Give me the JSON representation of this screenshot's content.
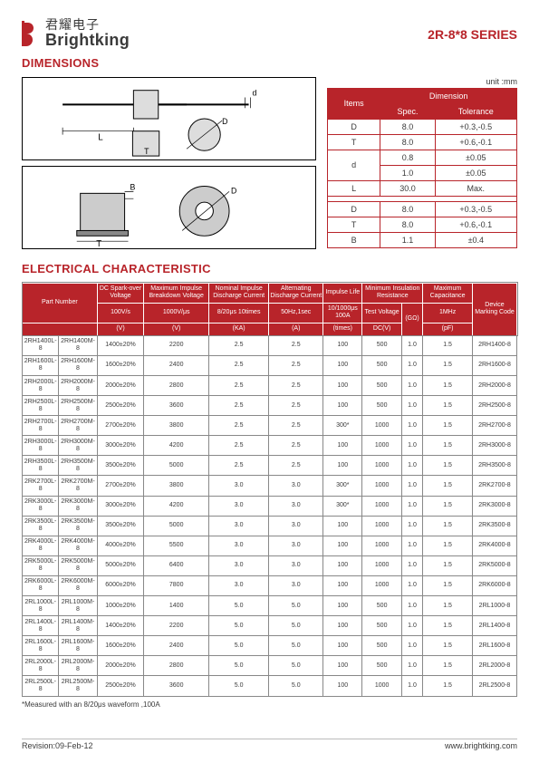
{
  "header": {
    "logo_cn": "君耀电子",
    "logo_en": "Brightking",
    "series": "2R-8*8 SERIES"
  },
  "sections": {
    "dimensions": "DIMENSIONS",
    "electrical": "ELECTRICAL CHARACTERISTIC"
  },
  "dim_unit": "unit :mm",
  "dim_headers": {
    "items": "Items",
    "dimension": "Dimension",
    "spec": "Spec.",
    "tol": "Tolerance"
  },
  "dim_rows_a": [
    {
      "item": "D",
      "spec": "8.0",
      "tol": "+0.3,-0.5"
    },
    {
      "item": "T",
      "spec": "8.0",
      "tol": "+0.6,-0.1"
    },
    {
      "item": "d",
      "spec": "0.8",
      "tol": "±0.05",
      "rowspan": 2
    },
    {
      "item": "",
      "spec": "1.0",
      "tol": "±0.05"
    },
    {
      "item": "L",
      "spec": "30.0",
      "tol": "Max."
    }
  ],
  "dim_rows_b": [
    {
      "item": "D",
      "spec": "8.0",
      "tol": "+0.3,-0.5"
    },
    {
      "item": "T",
      "spec": "8.0",
      "tol": "+0.6,-0.1"
    },
    {
      "item": "B",
      "spec": "1.1",
      "tol": "±0.4"
    }
  ],
  "elec_headers": {
    "r1": [
      "Part Number",
      "DC Spark-over Voltage",
      "Maximum Impulse Breakdown Voltage",
      "Nominal Impulse Discharge Current",
      "Alternating Discharge Current",
      "Impulse Life",
      "Minimum Insulation Resistance",
      "Maximum Capacitance",
      "Device Marking Code"
    ],
    "r2": [
      "100V/s",
      "1000V/μs",
      "8/20μs 10times",
      "50Hz,1sec",
      "10/1000μs 100A",
      "Test Voltage",
      "(GΩ)",
      "1MHz"
    ],
    "r3": [
      "(V)",
      "(V)",
      "(KA)",
      "(A)",
      "(times)",
      "DC(V)",
      "",
      "(pF)"
    ]
  },
  "elec_groups": [
    [
      [
        "2RH1400L-8",
        "2RH1400M-8",
        "1400±20%",
        "2200",
        "2.5",
        "2.5",
        "100",
        "500",
        "1.0",
        "1.5",
        "2RH1400-8"
      ],
      [
        "2RH1600L-8",
        "2RH1600M-8",
        "1600±20%",
        "2400",
        "2.5",
        "2.5",
        "100",
        "500",
        "1.0",
        "1.5",
        "2RH1600-8"
      ],
      [
        "2RH2000L-8",
        "2RH2000M-8",
        "2000±20%",
        "2800",
        "2.5",
        "2.5",
        "100",
        "500",
        "1.0",
        "1.5",
        "2RH2000-8"
      ],
      [
        "2RH2500L-8",
        "2RH2500M-8",
        "2500±20%",
        "3600",
        "2.5",
        "2.5",
        "100",
        "500",
        "1.0",
        "1.5",
        "2RH2500-8"
      ],
      [
        "2RH2700L-8",
        "2RH2700M-8",
        "2700±20%",
        "3800",
        "2.5",
        "2.5",
        "300*",
        "1000",
        "1.0",
        "1.5",
        "2RH2700-8"
      ],
      [
        "2RH3000L-8",
        "2RH3000M-8",
        "3000±20%",
        "4200",
        "2.5",
        "2.5",
        "100",
        "1000",
        "1.0",
        "1.5",
        "2RH3000-8"
      ],
      [
        "2RH3500L-8",
        "2RH3500M-8",
        "3500±20%",
        "5000",
        "2.5",
        "2.5",
        "100",
        "1000",
        "1.0",
        "1.5",
        "2RH3500-8"
      ]
    ],
    [
      [
        "2RK2700L-8",
        "2RK2700M-8",
        "2700±20%",
        "3800",
        "3.0",
        "3.0",
        "300*",
        "1000",
        "1.0",
        "1.5",
        "2RK2700-8"
      ],
      [
        "2RK3000L-8",
        "2RK3000M-8",
        "3000±20%",
        "4200",
        "3.0",
        "3.0",
        "300*",
        "1000",
        "1.0",
        "1.5",
        "2RK3000-8"
      ],
      [
        "2RK3500L-8",
        "2RK3500M-8",
        "3500±20%",
        "5000",
        "3.0",
        "3.0",
        "100",
        "1000",
        "1.0",
        "1.5",
        "2RK3500-8"
      ],
      [
        "2RK4000L-8",
        "2RK4000M-8",
        "4000±20%",
        "5500",
        "3.0",
        "3.0",
        "100",
        "1000",
        "1.0",
        "1.5",
        "2RK4000-8"
      ],
      [
        "2RK5000L-8",
        "2RK5000M-8",
        "5000±20%",
        "6400",
        "3.0",
        "3.0",
        "100",
        "1000",
        "1.0",
        "1.5",
        "2RK5000-8"
      ],
      [
        "2RK6000L-8",
        "2RK6000M-8",
        "6000±20%",
        "7800",
        "3.0",
        "3.0",
        "100",
        "1000",
        "1.0",
        "1.5",
        "2RK6000-8"
      ]
    ],
    [
      [
        "2RL1000L-8",
        "2RL1000M-8",
        "1000±20%",
        "1400",
        "5.0",
        "5.0",
        "100",
        "500",
        "1.0",
        "1.5",
        "2RL1000-8"
      ],
      [
        "2RL1400L-8",
        "2RL1400M-8",
        "1400±20%",
        "2200",
        "5.0",
        "5.0",
        "100",
        "500",
        "1.0",
        "1.5",
        "2RL1400-8"
      ],
      [
        "2RL1600L-8",
        "2RL1600M-8",
        "1600±20%",
        "2400",
        "5.0",
        "5.0",
        "100",
        "500",
        "1.0",
        "1.5",
        "2RL1600-8"
      ],
      [
        "2RL2000L-8",
        "2RL2000M-8",
        "2000±20%",
        "2800",
        "5.0",
        "5.0",
        "100",
        "500",
        "1.0",
        "1.5",
        "2RL2000-8"
      ],
      [
        "2RL2500L-8",
        "2RL2500M-8",
        "2500±20%",
        "3600",
        "5.0",
        "5.0",
        "100",
        "1000",
        "1.0",
        "1.5",
        "2RL2500-8"
      ]
    ]
  ],
  "footnote": "*Measured with an 8/20μs waveform ,100A",
  "footer": {
    "rev": "Revision:09-Feb-12",
    "url": "www.brightking.com"
  },
  "diagram_labels": {
    "L": "L",
    "T": "T",
    "D": "D",
    "d": "d",
    "B": "B"
  },
  "colors": {
    "brand": "#b8242a",
    "text": "#3b3b3b",
    "border": "#888"
  }
}
